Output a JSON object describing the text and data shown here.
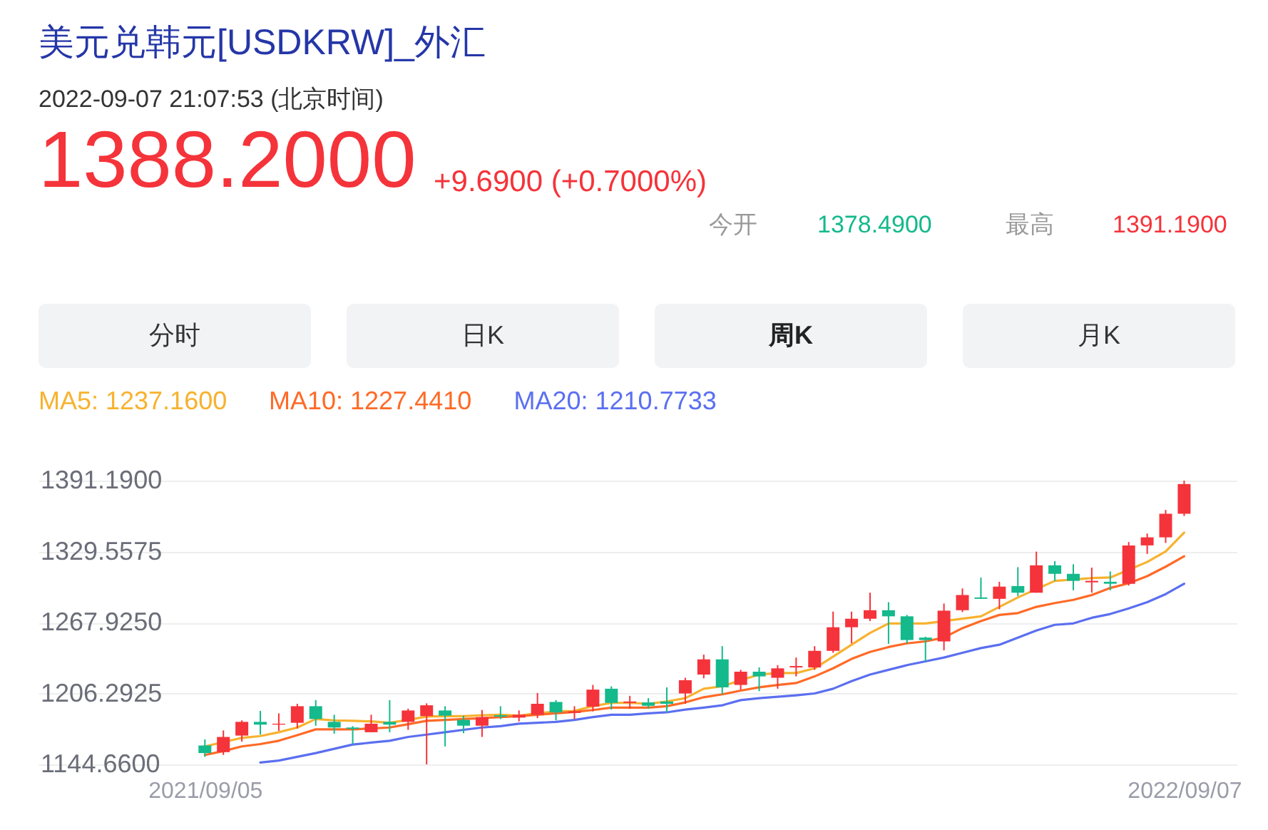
{
  "chart_data": {
    "type": "candlestick",
    "title": "美元兑韩元[USDKRW]_外汇",
    "subtitle": "2022-09-07 21:07:53 (北京时间)",
    "annotations": [
      "1388.2000",
      "+9.6900 (+0.7000%)",
      "今开",
      "1378.4900",
      "最高",
      "1391.1900",
      "分时",
      "日K",
      "周K",
      "月K"
    ],
    "categories": [
      "2021/09/05",
      null,
      null,
      null,
      null,
      null,
      null,
      null,
      null,
      null,
      null,
      null,
      null,
      null,
      null,
      null,
      null,
      null,
      null,
      null,
      null,
      null,
      null,
      null,
      null,
      null,
      null,
      null,
      null,
      null,
      null,
      null,
      null,
      null,
      null,
      null,
      null,
      null,
      null,
      null,
      null,
      null,
      null,
      null,
      null,
      null,
      null,
      null,
      null,
      null,
      null,
      null,
      null,
      "2022/09/07"
    ],
    "ohlc": [
      [
        1161.1,
        1166.4,
        1151.2,
        1154.5
      ],
      [
        1155.3,
        1174.2,
        1152.9,
        1168.5
      ],
      [
        1169.7,
        1182.9,
        1164.4,
        1181.6
      ],
      [
        1181.6,
        1191.1,
        1170.5,
        1179.2
      ],
      [
        1179.2,
        1189.0,
        1173.8,
        1180.0
      ],
      [
        1180.8,
        1197.3,
        1175.9,
        1195.2
      ],
      [
        1195.2,
        1200.5,
        1178.3,
        1184.1
      ],
      [
        1181.6,
        1187.8,
        1171.4,
        1176.7
      ],
      [
        1176.7,
        1177.9,
        1162.3,
        1175.5
      ],
      [
        1172.6,
        1187.8,
        1172.6,
        1180.0
      ],
      [
        1181.6,
        1200.5,
        1172.6,
        1179.2
      ],
      [
        1181.6,
        1193.1,
        1174.7,
        1191.5
      ],
      [
        1186.6,
        1197.7,
        1144.66,
        1196.0
      ],
      [
        1191.5,
        1195.2,
        1160.3,
        1187.0
      ],
      [
        1183.3,
        1187.0,
        1171.8,
        1178.3
      ],
      [
        1178.3,
        1191.9,
        1168.5,
        1185.7
      ],
      [
        1187.4,
        1195.2,
        1184.1,
        1186.2
      ],
      [
        1185.3,
        1191.5,
        1182.0,
        1187.8
      ],
      [
        1187.8,
        1206.7,
        1184.9,
        1197.3
      ],
      [
        1198.9,
        1200.5,
        1182.9,
        1189.9
      ],
      [
        1189.4,
        1195.2,
        1184.1,
        1190.7
      ],
      [
        1194.8,
        1213.7,
        1190.7,
        1209.6
      ],
      [
        1210.4,
        1212.5,
        1192.3,
        1198.1
      ],
      [
        1198.1,
        1204.2,
        1193.1,
        1199.3
      ],
      [
        1198.5,
        1202.2,
        1193.1,
        1195.6
      ],
      [
        1199.3,
        1211.6,
        1189.9,
        1197.3
      ],
      [
        1206.3,
        1219.9,
        1197.3,
        1217.8
      ],
      [
        1222.7,
        1240.0,
        1219.4,
        1235.9
      ],
      [
        1235.9,
        1247.4,
        1205.5,
        1211.6
      ],
      [
        1213.7,
        1226.8,
        1209.6,
        1225.2
      ],
      [
        1225.2,
        1228.9,
        1208.3,
        1221.1
      ],
      [
        1219.9,
        1230.9,
        1210.4,
        1228.1
      ],
      [
        1228.9,
        1237.5,
        1221.1,
        1230.1
      ],
      [
        1228.9,
        1247.4,
        1226.8,
        1243.3
      ],
      [
        1243.3,
        1277.4,
        1241.6,
        1263.8
      ],
      [
        1263.8,
        1277.4,
        1249.8,
        1271.2
      ],
      [
        1271.2,
        1293.8,
        1269.2,
        1278.6
      ],
      [
        1278.6,
        1285.6,
        1249.4,
        1273.3
      ],
      [
        1273.3,
        1274.5,
        1249.8,
        1252.7
      ],
      [
        1254.8,
        1255.6,
        1234.2,
        1252.7
      ],
      [
        1251.5,
        1284.4,
        1243.7,
        1278.2
      ],
      [
        1278.6,
        1297.5,
        1277.0,
        1291.8
      ],
      [
        1289.7,
        1306.9,
        1288.5,
        1288.5
      ],
      [
        1288.5,
        1303.3,
        1279.4,
        1299.1
      ],
      [
        1299.6,
        1316.0,
        1290.9,
        1293.8
      ],
      [
        1293.8,
        1329.5,
        1293.8,
        1317.6
      ],
      [
        1317.6,
        1321.3,
        1304.1,
        1310.2
      ],
      [
        1310.2,
        1318.5,
        1295.9,
        1304.1
      ],
      [
        1302.8,
        1315.6,
        1293.8,
        1304.1
      ],
      [
        1303.3,
        1312.3,
        1295.9,
        1301.6
      ],
      [
        1301.6,
        1337.8,
        1300.0,
        1334.9
      ],
      [
        1334.9,
        1345.2,
        1327.5,
        1341.9
      ],
      [
        1341.9,
        1365.7,
        1337.0,
        1362.4
      ],
      [
        1362.4,
        1391.19,
        1360.4,
        1388.2
      ]
    ],
    "colors": [
      "#14b98c",
      "#f5333a",
      "#f5333a",
      "#14b98c",
      "#f5333a",
      "#f5333a",
      "#14b98c",
      "#14b98c",
      "#14b98c",
      "#f5333a",
      "#14b98c",
      "#f5333a",
      "#f5333a",
      "#14b98c",
      "#14b98c",
      "#f5333a",
      "#14b98c",
      "#f5333a",
      "#f5333a",
      "#14b98c",
      "#f5333a",
      "#f5333a",
      "#14b98c",
      "#f5333a",
      "#14b98c",
      "#14b98c",
      "#f5333a",
      "#f5333a",
      "#14b98c",
      "#f5333a",
      "#14b98c",
      "#f5333a",
      "#f5333a",
      "#f5333a",
      "#f5333a",
      "#f5333a",
      "#f5333a",
      "#14b98c",
      "#14b98c",
      "#14b98c",
      "#f5333a",
      "#f5333a",
      "#14b98c",
      "#f5333a",
      "#14b98c",
      "#f5333a",
      "#14b98c",
      "#14b98c",
      "#f5333a",
      "#14b98c",
      "#f5333a",
      "#f5333a",
      "#f5333a",
      "#f5333a"
    ],
    "series": [
      {
        "name": "MA5: 1237.1600",
        "type": "line",
        "color": "#f7b22f",
        "values": [
          1160.3,
          null,
          1167.7,
          1169.3,
          1172.6,
          1176.7,
          1184.1,
          1182.9,
          1182.5,
          1182.0,
          1180.8,
          1183.3,
          1186.2,
          1186.6,
          1186.6,
          1187.4,
          1187.8,
          1187.0,
          1189.0,
          1190.7,
          1191.1,
          1195.2,
          1198.1,
          1198.1,
          1197.3,
          1199.3,
          1202.2,
          1210.4,
          1212.5,
          1217.8,
          1222.7,
          1224.0,
          1224.0,
          1228.1,
          1238.3,
          1248.6,
          1258.9,
          1267.1,
          null,
          1267.1,
          null,
          1271.2,
          1273.3,
          1281.5,
          1289.7,
          null,
          1304.1,
          null,
          1306.5,
          1307.0,
          null,
          1320.5,
          1329.6,
          1346.0
        ]
      },
      {
        "name": "MA10: 1227.4410",
        "type": "line",
        "color": "#ff6a26",
        "values": [
          1152.9,
          1156.2,
          1160.3,
          1162.3,
          1165.2,
          1170.1,
          1175.1,
          1175.1,
          1175.1,
          1175.9,
          1176.7,
          1179.6,
          1182.5,
          1183.3,
          1184.1,
          1184.9,
          1185.8,
          1186.6,
          1187.8,
          1189.0,
          1190.3,
          1191.9,
          1194.0,
          1194.0,
          1194.0,
          1195.2,
          1198.5,
          1203.0,
          1205.5,
          1208.8,
          1211.6,
          1213.7,
          1215.3,
          1221.1,
          1228.1,
          1236.3,
          1242.4,
          1246.6,
          1249.8,
          1251.5,
          1254.8,
          1263.0,
          1269.2,
          1274.5,
          1276.1,
          1281.5,
          1284.8,
          1287.6,
          1291.8,
          1297.9,
          1302.0,
          1308.2,
          1316.4,
          1325.4
        ]
      },
      {
        "name": "MA20: 1210.7733",
        "type": "line",
        "color": "#5b6ff0",
        "values": [
          null,
          null,
          null,
          1146.3,
          1148.0,
          1151.2,
          1154.5,
          1158.2,
          1161.9,
          1163.6,
          1165.2,
          1168.5,
          1170.5,
          1172.6,
          1174.7,
          1176.7,
          1177.9,
          1180.0,
          1180.8,
          1181.6,
          1183.3,
          1185.8,
          1187.8,
          1187.8,
          1189.0,
          1189.9,
          1192.3,
          1194.0,
          1196.0,
          1200.5,
          1202.2,
          1203.4,
          1204.7,
          1206.3,
          1210.4,
          1217.0,
          1222.7,
          1226.8,
          1230.9,
          1234.2,
          1237.5,
          1241.6,
          1245.7,
          1248.6,
          1254.8,
          1260.9,
          1265.9,
          1267.1,
          1272.0,
          1275.3,
          1280.2,
          1285.6,
          1292.6,
          1301.6
        ]
      }
    ],
    "ylim": [
      1144.66,
      1391.19
    ],
    "yticks": [
      {
        "value": 1144.66,
        "label": "1144.6600"
      },
      {
        "value": 1206.2925,
        "label": "1206.2925"
      },
      {
        "value": 1267.925,
        "label": "1267.9250"
      },
      {
        "value": 1329.5575,
        "label": "1329.5575"
      },
      {
        "value": 1391.19,
        "label": "1391.1900"
      }
    ],
    "grid": "y",
    "legend": "top left"
  }
}
